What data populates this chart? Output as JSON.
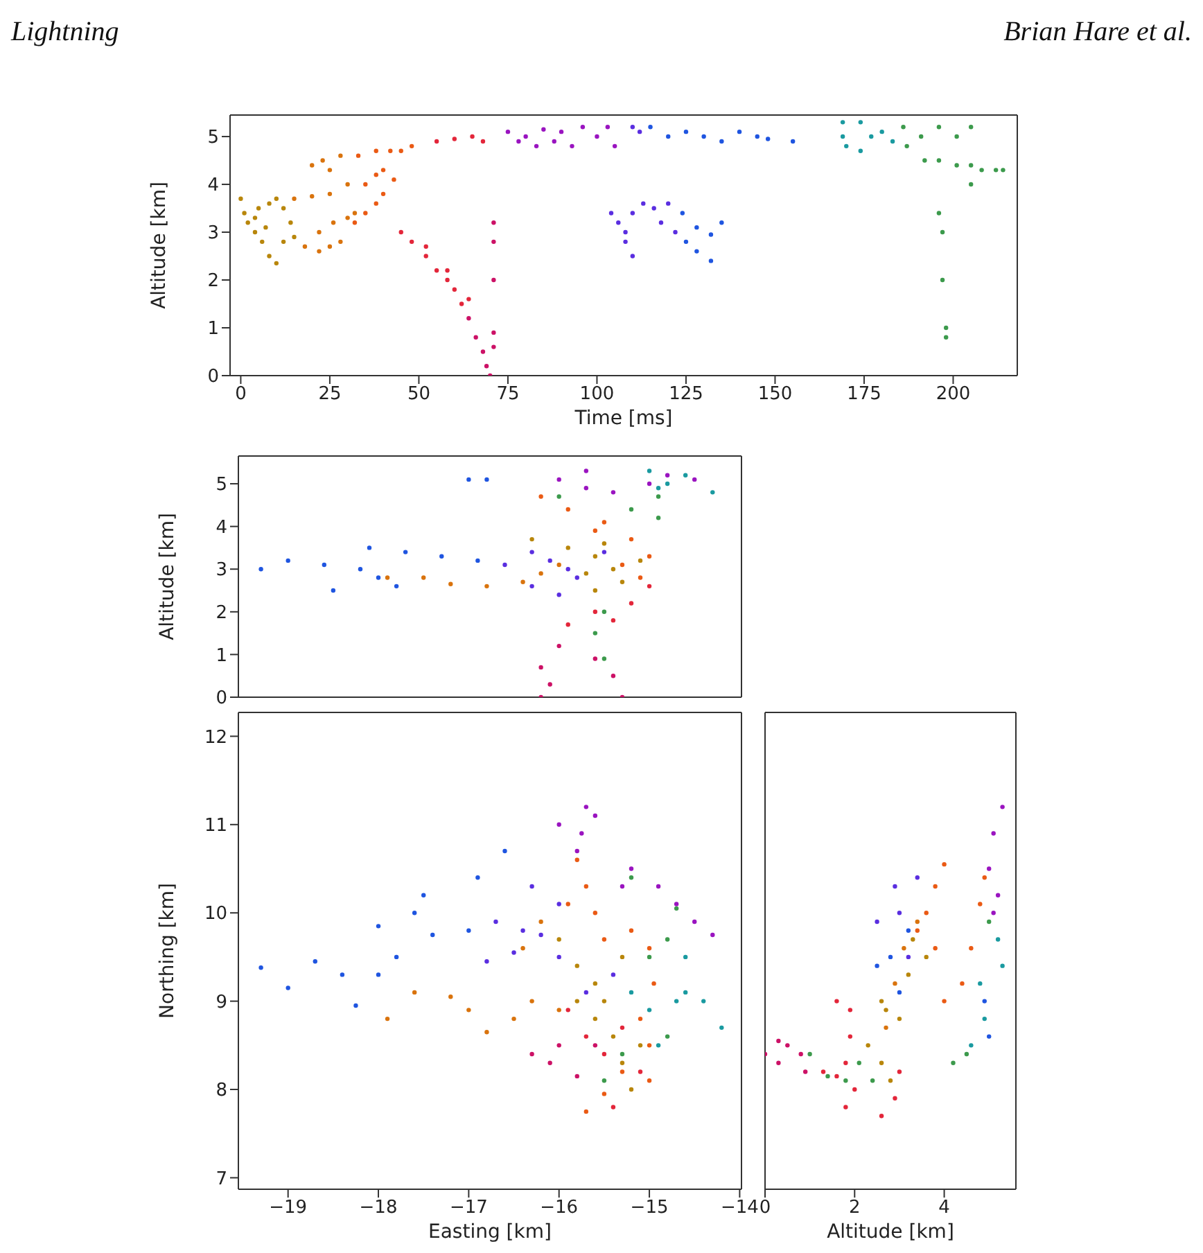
{
  "chart_data": [
    {
      "type": "scatter",
      "marker": "circle",
      "annotations": [
        "Lightning",
        "Brian Hare et al."
      ],
      "xlabel": "Time [ms]",
      "ylabel": "Altitude [km]",
      "xlim": [
        -3,
        218
      ],
      "xticks": [
        0,
        25,
        50,
        75,
        100,
        125,
        150,
        175,
        200
      ],
      "ylim": [
        0,
        5.45
      ],
      "yticks": [
        0,
        1,
        2,
        3,
        4,
        5
      ],
      "series": [
        {
          "color": "#b8860b",
          "x": [
            0,
            1,
            2,
            4,
            6,
            8,
            10,
            5,
            8,
            10,
            12,
            14,
            4,
            7,
            12,
            15
          ],
          "values": [
            3.7,
            3.4,
            3.2,
            3.0,
            2.8,
            2.5,
            2.35,
            3.5,
            3.6,
            3.7,
            3.5,
            3.2,
            3.3,
            3.1,
            2.8,
            2.9
          ]
        },
        {
          "color": "#d9730d",
          "x": [
            15,
            20,
            25,
            30,
            18,
            22,
            25,
            28,
            30,
            32,
            20,
            23,
            25,
            28,
            22,
            26
          ],
          "values": [
            3.7,
            3.75,
            3.8,
            4.0,
            2.7,
            2.6,
            2.7,
            2.8,
            3.3,
            3.4,
            4.4,
            4.5,
            4.3,
            4.6,
            3.0,
            3.2
          ]
        },
        {
          "color": "#ea5a14",
          "x": [
            35,
            38,
            40,
            43,
            32,
            35,
            38,
            40,
            33,
            38,
            42,
            45,
            48
          ],
          "values": [
            4.0,
            4.2,
            4.3,
            4.1,
            3.2,
            3.4,
            3.6,
            3.8,
            4.6,
            4.7,
            4.7,
            4.7,
            4.8
          ]
        },
        {
          "color": "#e3263a",
          "x": [
            45,
            48,
            52,
            55,
            58,
            60,
            62,
            52,
            58,
            64,
            55,
            60,
            65,
            68
          ],
          "values": [
            3.0,
            2.8,
            2.5,
            2.2,
            2.0,
            1.8,
            1.5,
            2.7,
            2.2,
            1.6,
            4.9,
            4.95,
            5.0,
            4.9
          ]
        },
        {
          "color": "#cc1166",
          "x": [
            64,
            66,
            68,
            69,
            70,
            71,
            71,
            71,
            71,
            71
          ],
          "values": [
            1.2,
            0.8,
            0.5,
            0.2,
            0,
            3.2,
            2.8,
            2.0,
            0.9,
            0.6
          ]
        },
        {
          "color": "#9a14c0",
          "x": [
            75,
            78,
            80,
            83,
            85,
            88,
            90,
            93,
            96,
            100,
            103,
            105
          ],
          "values": [
            5.1,
            4.9,
            5.0,
            4.8,
            5.15,
            4.9,
            5.1,
            4.8,
            5.2,
            5.0,
            5.2,
            4.8
          ]
        },
        {
          "color": "#5a2ee0",
          "x": [
            104,
            106,
            108,
            110,
            110,
            113,
            116,
            120,
            108,
            118,
            122,
            110,
            112
          ],
          "values": [
            3.4,
            3.2,
            2.8,
            2.5,
            3.4,
            3.6,
            3.5,
            3.6,
            3.0,
            3.2,
            3.0,
            5.2,
            5.1
          ]
        },
        {
          "color": "#1f55e0",
          "x": [
            125,
            128,
            132,
            124,
            128,
            132,
            135,
            115,
            120,
            125,
            130,
            135,
            140,
            145,
            148,
            155
          ],
          "values": [
            2.8,
            2.6,
            2.4,
            3.4,
            3.1,
            2.95,
            3.2,
            5.2,
            5.0,
            5.1,
            5.0,
            4.9,
            5.1,
            5.0,
            4.95,
            4.9
          ]
        },
        {
          "color": "#1a9aa0",
          "x": [
            169,
            169,
            170,
            174,
            174,
            177,
            180,
            183
          ],
          "values": [
            5.0,
            5.3,
            4.8,
            5.3,
            4.7,
            5.0,
            5.1,
            4.9
          ]
        },
        {
          "color": "#3c9a4c",
          "x": [
            186,
            187,
            191,
            192,
            196,
            196,
            196,
            197,
            197,
            198,
            198,
            201,
            201,
            205,
            205,
            205,
            208,
            212,
            214
          ],
          "values": [
            5.2,
            4.8,
            5.0,
            4.5,
            5.2,
            4.5,
            3.4,
            3.0,
            2.0,
            1.0,
            0.8,
            5.0,
            4.4,
            5.2,
            4.4,
            4.0,
            4.3,
            4.3,
            4.3
          ]
        }
      ]
    },
    {
      "type": "scatter",
      "marker": "circle",
      "ylabel": "Altitude [km]",
      "tick_labels": "y",
      "xlim": [
        -19.55,
        -13.98
      ],
      "xticks": [
        -19,
        -18,
        -17,
        -16,
        -15,
        -14
      ],
      "ylim": [
        0,
        5.65
      ],
      "yticks": [
        0,
        1,
        2,
        3,
        4,
        5
      ],
      "series": [
        {
          "color": "#b8860b",
          "x": [
            -16.3,
            -15.9,
            -15.6,
            -15.4,
            -15.7,
            -15.6,
            -15.3,
            -15.1,
            -15.5
          ],
          "values": [
            3.7,
            3.5,
            3.3,
            3.0,
            2.9,
            2.5,
            2.7,
            3.2,
            3.6
          ]
        },
        {
          "color": "#d9730d",
          "x": [
            -17.9,
            -17.5,
            -17.2,
            -16.8,
            -16.4,
            -16.2,
            -16.0
          ],
          "values": [
            2.8,
            2.8,
            2.65,
            2.6,
            2.7,
            2.9,
            3.1
          ]
        },
        {
          "color": "#ea5a14",
          "x": [
            -16.2,
            -15.9,
            -15.5,
            -15.2,
            -15.0,
            -15.1,
            -15.3,
            -15.6
          ],
          "values": [
            4.7,
            4.4,
            4.1,
            3.7,
            3.3,
            2.8,
            3.1,
            3.9
          ]
        },
        {
          "color": "#e3263a",
          "x": [
            -15.0,
            -15.2,
            -15.6,
            -15.9,
            -15.4
          ],
          "values": [
            2.6,
            2.2,
            2.0,
            1.7,
            1.8
          ]
        },
        {
          "color": "#cc1166",
          "x": [
            -16.0,
            -16.2,
            -16.1,
            -16.2,
            -15.6,
            -15.4,
            -15.3
          ],
          "values": [
            1.2,
            0.7,
            0.3,
            0,
            0.9,
            0.5,
            0
          ]
        },
        {
          "color": "#9a14c0",
          "x": [
            -15.7,
            -15.7,
            -15.4,
            -15.0,
            -14.8,
            -14.5,
            -16.0
          ],
          "values": [
            5.3,
            4.9,
            4.8,
            5.0,
            5.2,
            5.1,
            5.1
          ]
        },
        {
          "color": "#5a2ee0",
          "x": [
            -16.6,
            -16.3,
            -16.1,
            -15.9,
            -15.8,
            -16.3,
            -16.0,
            -15.5
          ],
          "values": [
            3.1,
            3.4,
            3.2,
            3.0,
            2.8,
            2.6,
            2.4,
            3.4
          ]
        },
        {
          "color": "#1f55e0",
          "x": [
            -19.3,
            -19.0,
            -18.6,
            -18.2,
            -18.0,
            -17.8,
            -18.5,
            -18.1,
            -17.7,
            -17.3,
            -16.9,
            -17.0,
            -16.8
          ],
          "values": [
            3.0,
            3.2,
            3.1,
            3.0,
            2.8,
            2.6,
            2.5,
            3.5,
            3.4,
            3.3,
            3.2,
            5.1,
            5.1
          ]
        },
        {
          "color": "#1a9aa0",
          "x": [
            -15.0,
            -14.8,
            -14.6,
            -14.3,
            -14.9
          ],
          "values": [
            5.3,
            5.0,
            5.2,
            4.8,
            4.9
          ]
        },
        {
          "color": "#3c9a4c",
          "x": [
            -14.9,
            -14.9,
            -15.2,
            -15.5,
            -15.6,
            -15.5,
            -16.0
          ],
          "values": [
            4.7,
            4.2,
            4.4,
            2.0,
            1.5,
            0.9,
            4.7
          ]
        }
      ]
    },
    {
      "type": "scatter",
      "marker": "circle",
      "xlabel": "Easting [km]",
      "ylabel": "Northing [km]",
      "xlim": [
        -19.55,
        -13.98
      ],
      "xticks": [
        -19,
        -18,
        -17,
        -16,
        -15,
        -14
      ],
      "ylim": [
        6.87,
        12.27
      ],
      "yticks": [
        7,
        8,
        9,
        10,
        11,
        12
      ],
      "series": [
        {
          "color": "#b8860b",
          "x": [
            -16.0,
            -15.8,
            -15.6,
            -15.5,
            -15.4,
            -15.3,
            -15.2,
            -15.6,
            -15.3,
            -15.8,
            -15.1
          ],
          "values": [
            9.7,
            9.4,
            9.2,
            9.0,
            8.6,
            8.3,
            8.0,
            8.8,
            9.5,
            9.0,
            8.5
          ]
        },
        {
          "color": "#d9730d",
          "x": [
            -17.9,
            -17.6,
            -17.2,
            -17.0,
            -16.8,
            -16.5,
            -16.3,
            -16.0,
            -16.4,
            -16.2
          ],
          "values": [
            8.8,
            9.1,
            9.05,
            8.9,
            8.65,
            8.8,
            9.0,
            8.9,
            9.6,
            9.9
          ]
        },
        {
          "color": "#ea5a14",
          "x": [
            -15.8,
            -15.7,
            -15.6,
            -15.5,
            -15.2,
            -15.0,
            -14.95,
            -15.1,
            -15.0,
            -15.3,
            -15.5,
            -15.7,
            -15.0,
            -15.9
          ],
          "values": [
            10.6,
            10.3,
            10.0,
            9.7,
            9.8,
            9.6,
            9.2,
            8.8,
            8.5,
            8.2,
            7.95,
            7.75,
            8.1,
            10.1
          ]
        },
        {
          "color": "#e3263a",
          "x": [
            -15.9,
            -15.7,
            -15.5,
            -15.3,
            -15.1,
            -15.4
          ],
          "values": [
            8.9,
            8.6,
            8.4,
            8.7,
            8.2,
            7.8
          ]
        },
        {
          "color": "#cc1166",
          "x": [
            -16.3,
            -16.0,
            -15.8,
            -16.1,
            -15.6
          ],
          "values": [
            8.4,
            8.5,
            8.15,
            8.3,
            8.5
          ]
        },
        {
          "color": "#9a14c0",
          "x": [
            -15.7,
            -15.6,
            -15.75,
            -15.8,
            -16.0,
            -15.3,
            -15.2,
            -14.9,
            -14.7,
            -14.5,
            -14.3
          ],
          "values": [
            11.2,
            11.1,
            10.9,
            10.7,
            11.0,
            10.3,
            10.5,
            10.3,
            10.1,
            9.9,
            9.75
          ]
        },
        {
          "color": "#5a2ee0",
          "x": [
            -16.7,
            -16.4,
            -16.3,
            -16.2,
            -16.0,
            -16.8,
            -16.5,
            -15.7,
            -15.4,
            -16.0
          ],
          "values": [
            9.9,
            9.8,
            10.3,
            9.75,
            10.1,
            9.45,
            9.55,
            9.1,
            9.3,
            9.5
          ]
        },
        {
          "color": "#1f55e0",
          "x": [
            -19.3,
            -19.0,
            -18.7,
            -18.4,
            -18.25,
            -18.0,
            -17.8,
            -17.6,
            -17.4,
            -17.0,
            -18.0,
            -17.5,
            -16.9,
            -16.6
          ],
          "values": [
            9.38,
            9.15,
            9.45,
            9.3,
            8.95,
            9.3,
            9.5,
            10.0,
            9.75,
            9.8,
            9.85,
            10.2,
            10.4,
            10.7
          ]
        },
        {
          "color": "#1a9aa0",
          "x": [
            -15.2,
            -15.0,
            -14.9,
            -14.7,
            -14.6,
            -14.4,
            -14.2,
            -14.6
          ],
          "values": [
            9.1,
            8.9,
            8.5,
            9.0,
            9.5,
            9.0,
            8.7,
            9.1
          ]
        },
        {
          "color": "#3c9a4c",
          "x": [
            -14.7,
            -14.8,
            -15.0,
            -15.2,
            -15.5,
            -15.3,
            -14.8
          ],
          "values": [
            10.05,
            9.7,
            9.5,
            10.4,
            8.1,
            8.4,
            8.6
          ]
        }
      ]
    },
    {
      "type": "scatter",
      "marker": "circle",
      "xlabel": "Altitude [km]",
      "tick_labels": "x",
      "xlim": [
        0,
        5.6
      ],
      "xticks": [
        0,
        2,
        4
      ],
      "ylim": [
        6.87,
        12.27
      ],
      "yticks": [
        7,
        8,
        9,
        10,
        11,
        12
      ],
      "series": [
        {
          "color": "#b8860b",
          "x": [
            2.3,
            2.6,
            2.7,
            2.6,
            3.0,
            3.2,
            3.3,
            3.6,
            2.8
          ],
          "values": [
            8.5,
            8.3,
            8.9,
            9.0,
            8.8,
            9.3,
            9.7,
            9.5,
            8.1
          ]
        },
        {
          "color": "#d9730d",
          "x": [
            2.7,
            2.9,
            3.1,
            3.4
          ],
          "values": [
            8.7,
            9.2,
            9.6,
            9.9
          ]
        },
        {
          "color": "#ea5a14",
          "x": [
            3.4,
            3.6,
            3.8,
            4.0,
            3.8,
            4.0,
            4.4,
            4.6,
            4.8,
            4.9
          ],
          "values": [
            9.8,
            10.0,
            10.3,
            10.55,
            9.6,
            9.0,
            9.2,
            9.6,
            10.1,
            10.4
          ]
        },
        {
          "color": "#e3263a",
          "x": [
            1.3,
            1.6,
            1.8,
            1.9,
            1.9,
            1.6,
            1.8,
            2.0,
            2.6,
            2.9,
            3.0
          ],
          "values": [
            8.2,
            8.15,
            8.3,
            8.6,
            8.9,
            9.0,
            7.8,
            8.0,
            7.7,
            7.9,
            8.2
          ]
        },
        {
          "color": "#cc1166",
          "x": [
            0,
            0.3,
            0.5,
            0.8,
            0.9,
            0.3
          ],
          "values": [
            8.4,
            8.55,
            8.5,
            8.4,
            8.2,
            8.3
          ]
        },
        {
          "color": "#9a14c0",
          "x": [
            5.0,
            5.1,
            5.3,
            5.2,
            5.1
          ],
          "values": [
            10.5,
            10.9,
            11.2,
            10.2,
            10.0
          ]
        },
        {
          "color": "#5a2ee0",
          "x": [
            2.5,
            2.9,
            3.0,
            3.4,
            3.2
          ],
          "values": [
            9.9,
            10.3,
            10.0,
            10.4,
            9.5
          ]
        },
        {
          "color": "#1f55e0",
          "x": [
            2.5,
            2.8,
            3.0,
            3.2,
            4.9,
            5.0
          ],
          "values": [
            9.4,
            9.5,
            9.1,
            9.8,
            9.0,
            8.6
          ]
        },
        {
          "color": "#1a9aa0",
          "x": [
            4.6,
            4.9,
            5.3,
            5.2,
            4.8
          ],
          "values": [
            8.5,
            8.8,
            9.4,
            9.7,
            9.2
          ]
        },
        {
          "color": "#3c9a4c",
          "x": [
            1.0,
            1.4,
            1.8,
            2.1,
            2.4,
            4.2,
            4.5,
            5.0
          ],
          "values": [
            8.4,
            8.15,
            8.1,
            8.3,
            8.1,
            8.3,
            8.4,
            9.9
          ]
        }
      ]
    }
  ]
}
